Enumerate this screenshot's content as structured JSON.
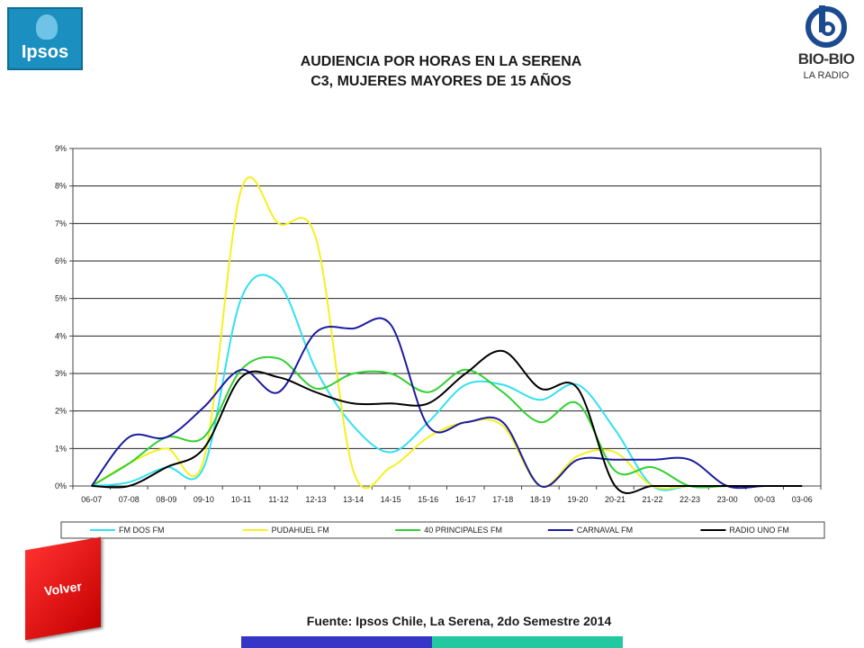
{
  "header": {
    "ipsos_logo": "Ipsos",
    "biobio_logo": "BIO-BIO",
    "biobio_sub": "LA RADIO",
    "title_line1": "AUDIENCIA POR HORAS EN LA SERENA",
    "title_line2": "C3, MUJERES MAYORES DE 15 AÑOS"
  },
  "footer": {
    "source": "Fuente: Ipsos Chile, La Serena, 2do Semestre 2014",
    "volver_label": "Volver"
  },
  "chart_data": {
    "type": "line",
    "title": "",
    "xlabel": "",
    "ylabel": "",
    "ylim": [
      0,
      9
    ],
    "yticks": [
      "0%",
      "1%",
      "2%",
      "3%",
      "4%",
      "5%",
      "6%",
      "7%",
      "8%",
      "9%"
    ],
    "grid": true,
    "legend_position": "bottom",
    "categories": [
      "06-07",
      "07-08",
      "08-09",
      "09-10",
      "10-11",
      "11-12",
      "12-13",
      "13-14",
      "14-15",
      "15-16",
      "16-17",
      "17-18",
      "18-19",
      "19-20",
      "20-21",
      "21-22",
      "22-23",
      "23-00",
      "00-03",
      "03-06"
    ],
    "series": [
      {
        "name": "FM DOS FM",
        "color": "#33e0f0",
        "values": [
          0,
          0.1,
          0.5,
          0.5,
          5.0,
          5.4,
          3.1,
          1.6,
          0.9,
          1.7,
          2.7,
          2.7,
          2.3,
          2.7,
          1.5,
          0,
          0,
          0,
          0,
          0
        ]
      },
      {
        "name": "PUDAHUEL FM",
        "color": "#f5f020",
        "values": [
          0,
          0.6,
          1.0,
          0.7,
          7.9,
          7.0,
          6.6,
          0.4,
          0.5,
          1.3,
          1.7,
          1.6,
          0,
          0.8,
          0.9,
          0,
          0,
          0,
          0,
          0
        ]
      },
      {
        "name": "40 PRINCIPALES FM",
        "color": "#30d030",
        "values": [
          0,
          0.6,
          1.3,
          1.3,
          3.1,
          3.4,
          2.6,
          3.0,
          3.0,
          2.5,
          3.1,
          2.5,
          1.7,
          2.2,
          0.4,
          0.5,
          0,
          0,
          0,
          0
        ]
      },
      {
        "name": "CARNAVAL FM",
        "color": "#1a1aa0",
        "values": [
          0,
          1.3,
          1.3,
          2.1,
          3.1,
          2.5,
          4.1,
          4.2,
          4.3,
          1.6,
          1.7,
          1.7,
          0,
          0.7,
          0.7,
          0.7,
          0.7,
          0,
          0,
          0
        ]
      },
      {
        "name": "RADIO UNO FM",
        "color": "#000000",
        "values": [
          0,
          0,
          0.5,
          1.0,
          2.9,
          2.9,
          2.5,
          2.2,
          2.2,
          2.2,
          3.0,
          3.6,
          2.6,
          2.6,
          0,
          0,
          0,
          0,
          0,
          0
        ]
      }
    ]
  }
}
